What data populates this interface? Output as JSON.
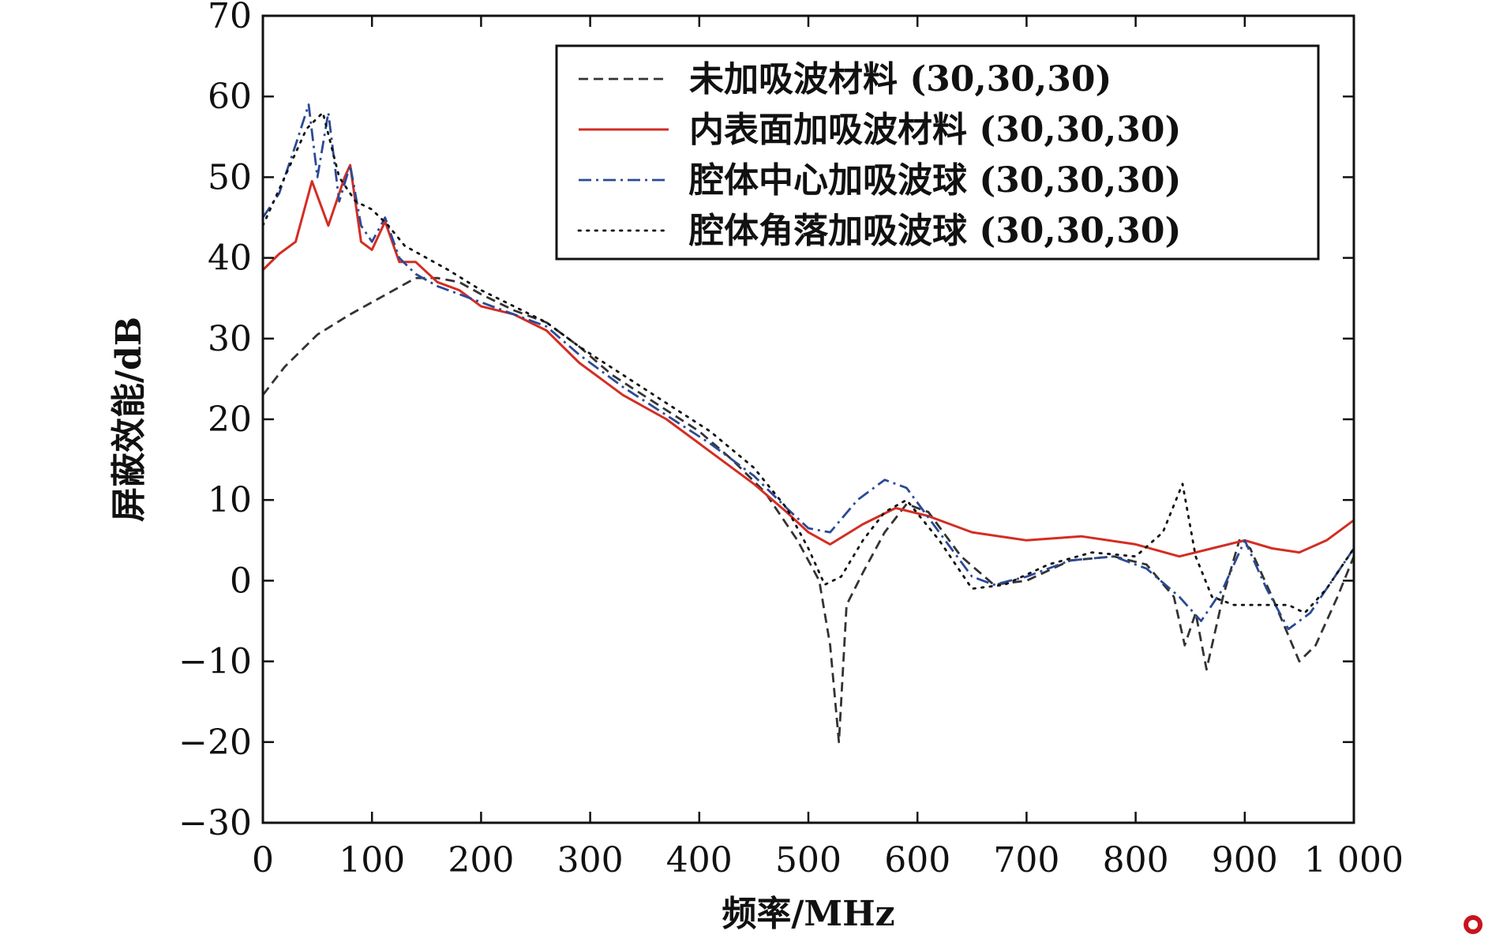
{
  "chart_data": {
    "type": "line",
    "title": "",
    "xlabel": "频率/MHz",
    "ylabel": "屏蔽效能/dB",
    "xlim": [
      0,
      1000
    ],
    "ylim": [
      -30,
      70
    ],
    "x_ticks": [
      0,
      100,
      200,
      300,
      400,
      500,
      600,
      700,
      800,
      900,
      1000
    ],
    "x_tick_labels": [
      "0",
      "100",
      "200",
      "300",
      "400",
      "500",
      "600",
      "700",
      "800",
      "900",
      "1 000"
    ],
    "y_ticks": [
      -30,
      -20,
      -10,
      0,
      10,
      20,
      30,
      40,
      50,
      60,
      70
    ],
    "y_tick_labels": [
      "−30",
      "−20",
      "−10",
      "0",
      "10",
      "20",
      "30",
      "40",
      "50",
      "60",
      "70"
    ],
    "grid": false,
    "legend_position": "top-right",
    "series": [
      {
        "name": "未加吸波材料 (30,30,30)",
        "color": "#333333",
        "style": "dashed",
        "points": [
          [
            0,
            23
          ],
          [
            20,
            26.5
          ],
          [
            50,
            30.5
          ],
          [
            80,
            33
          ],
          [
            100,
            34.5
          ],
          [
            120,
            36
          ],
          [
            140,
            37.5
          ],
          [
            160,
            37.5
          ],
          [
            180,
            37
          ],
          [
            200,
            35.5
          ],
          [
            230,
            33.5
          ],
          [
            260,
            32
          ],
          [
            290,
            29
          ],
          [
            320,
            25.5
          ],
          [
            360,
            22
          ],
          [
            400,
            18.5
          ],
          [
            430,
            15
          ],
          [
            460,
            11
          ],
          [
            490,
            5
          ],
          [
            510,
            0
          ],
          [
            520,
            -8
          ],
          [
            528,
            -20
          ],
          [
            535,
            -3
          ],
          [
            550,
            1
          ],
          [
            570,
            6
          ],
          [
            590,
            9.5
          ],
          [
            610,
            8.5
          ],
          [
            640,
            3
          ],
          [
            670,
            -0.5
          ],
          [
            700,
            0
          ],
          [
            740,
            2.5
          ],
          [
            780,
            3
          ],
          [
            810,
            2
          ],
          [
            835,
            -2
          ],
          [
            845,
            -8
          ],
          [
            855,
            -4
          ],
          [
            865,
            -11
          ],
          [
            880,
            -2
          ],
          [
            895,
            5
          ],
          [
            905,
            4
          ],
          [
            925,
            -2
          ],
          [
            950,
            -10
          ],
          [
            965,
            -8
          ],
          [
            985,
            -2
          ],
          [
            1000,
            3
          ]
        ]
      },
      {
        "name": "内表面加吸波材料 (30,30,30)",
        "color": "#d42d23",
        "style": "solid",
        "points": [
          [
            0,
            38.5
          ],
          [
            15,
            40.5
          ],
          [
            30,
            42
          ],
          [
            45,
            49.5
          ],
          [
            60,
            44
          ],
          [
            75,
            50
          ],
          [
            80,
            51.5
          ],
          [
            90,
            42
          ],
          [
            100,
            41
          ],
          [
            112,
            44.5
          ],
          [
            125,
            39.5
          ],
          [
            140,
            39.5
          ],
          [
            160,
            37
          ],
          [
            180,
            36
          ],
          [
            200,
            34
          ],
          [
            230,
            33
          ],
          [
            260,
            31
          ],
          [
            290,
            27
          ],
          [
            330,
            23
          ],
          [
            370,
            20
          ],
          [
            410,
            16
          ],
          [
            450,
            12
          ],
          [
            480,
            8.5
          ],
          [
            500,
            6
          ],
          [
            520,
            4.5
          ],
          [
            550,
            7
          ],
          [
            580,
            9
          ],
          [
            610,
            8
          ],
          [
            650,
            6
          ],
          [
            700,
            5
          ],
          [
            750,
            5.5
          ],
          [
            800,
            4.5
          ],
          [
            840,
            3
          ],
          [
            870,
            4
          ],
          [
            900,
            5
          ],
          [
            925,
            4
          ],
          [
            950,
            3.5
          ],
          [
            975,
            5
          ],
          [
            1000,
            7.5
          ]
        ]
      },
      {
        "name": "腔体中心加吸波球 (30,30,30)",
        "color": "#2b4a96",
        "style": "dashdot",
        "points": [
          [
            0,
            45
          ],
          [
            15,
            48
          ],
          [
            30,
            54
          ],
          [
            42,
            59
          ],
          [
            50,
            50
          ],
          [
            60,
            58
          ],
          [
            70,
            47
          ],
          [
            80,
            51.5
          ],
          [
            90,
            44
          ],
          [
            100,
            42
          ],
          [
            112,
            45
          ],
          [
            125,
            40
          ],
          [
            140,
            38
          ],
          [
            160,
            36.5
          ],
          [
            180,
            35.5
          ],
          [
            200,
            34.5
          ],
          [
            230,
            33
          ],
          [
            260,
            31.5
          ],
          [
            290,
            28
          ],
          [
            330,
            24
          ],
          [
            370,
            20.5
          ],
          [
            410,
            17
          ],
          [
            450,
            13
          ],
          [
            480,
            9
          ],
          [
            500,
            6.5
          ],
          [
            520,
            6
          ],
          [
            545,
            10
          ],
          [
            570,
            12.5
          ],
          [
            590,
            11.5
          ],
          [
            620,
            6
          ],
          [
            650,
            0.5
          ],
          [
            670,
            -0.5
          ],
          [
            700,
            0.5
          ],
          [
            740,
            2.5
          ],
          [
            780,
            3
          ],
          [
            810,
            1.5
          ],
          [
            840,
            -2
          ],
          [
            860,
            -5
          ],
          [
            880,
            -1
          ],
          [
            900,
            5
          ],
          [
            920,
            -1
          ],
          [
            940,
            -6
          ],
          [
            960,
            -4
          ],
          [
            980,
            0
          ],
          [
            1000,
            4
          ]
        ]
      },
      {
        "name": "腔体角落加吸波球 (30,30,30)",
        "color": "#111111",
        "style": "dotted",
        "points": [
          [
            0,
            44
          ],
          [
            20,
            50
          ],
          [
            40,
            56
          ],
          [
            55,
            58
          ],
          [
            70,
            50
          ],
          [
            85,
            47
          ],
          [
            100,
            46
          ],
          [
            115,
            44
          ],
          [
            130,
            41.5
          ],
          [
            150,
            40
          ],
          [
            170,
            38.5
          ],
          [
            200,
            36
          ],
          [
            230,
            34
          ],
          [
            260,
            32
          ],
          [
            290,
            29
          ],
          [
            330,
            25.5
          ],
          [
            370,
            22
          ],
          [
            410,
            18.5
          ],
          [
            450,
            14
          ],
          [
            480,
            9
          ],
          [
            500,
            4
          ],
          [
            515,
            -0.5
          ],
          [
            530,
            0.5
          ],
          [
            550,
            5
          ],
          [
            570,
            8.5
          ],
          [
            590,
            10
          ],
          [
            620,
            5
          ],
          [
            650,
            -1
          ],
          [
            680,
            -0.5
          ],
          [
            720,
            2
          ],
          [
            760,
            3.5
          ],
          [
            800,
            3
          ],
          [
            825,
            6
          ],
          [
            843,
            12
          ],
          [
            855,
            3
          ],
          [
            870,
            -2
          ],
          [
            890,
            -3
          ],
          [
            920,
            -3
          ],
          [
            940,
            -3
          ],
          [
            955,
            -4
          ],
          [
            975,
            -1
          ],
          [
            1000,
            4
          ]
        ]
      }
    ]
  }
}
